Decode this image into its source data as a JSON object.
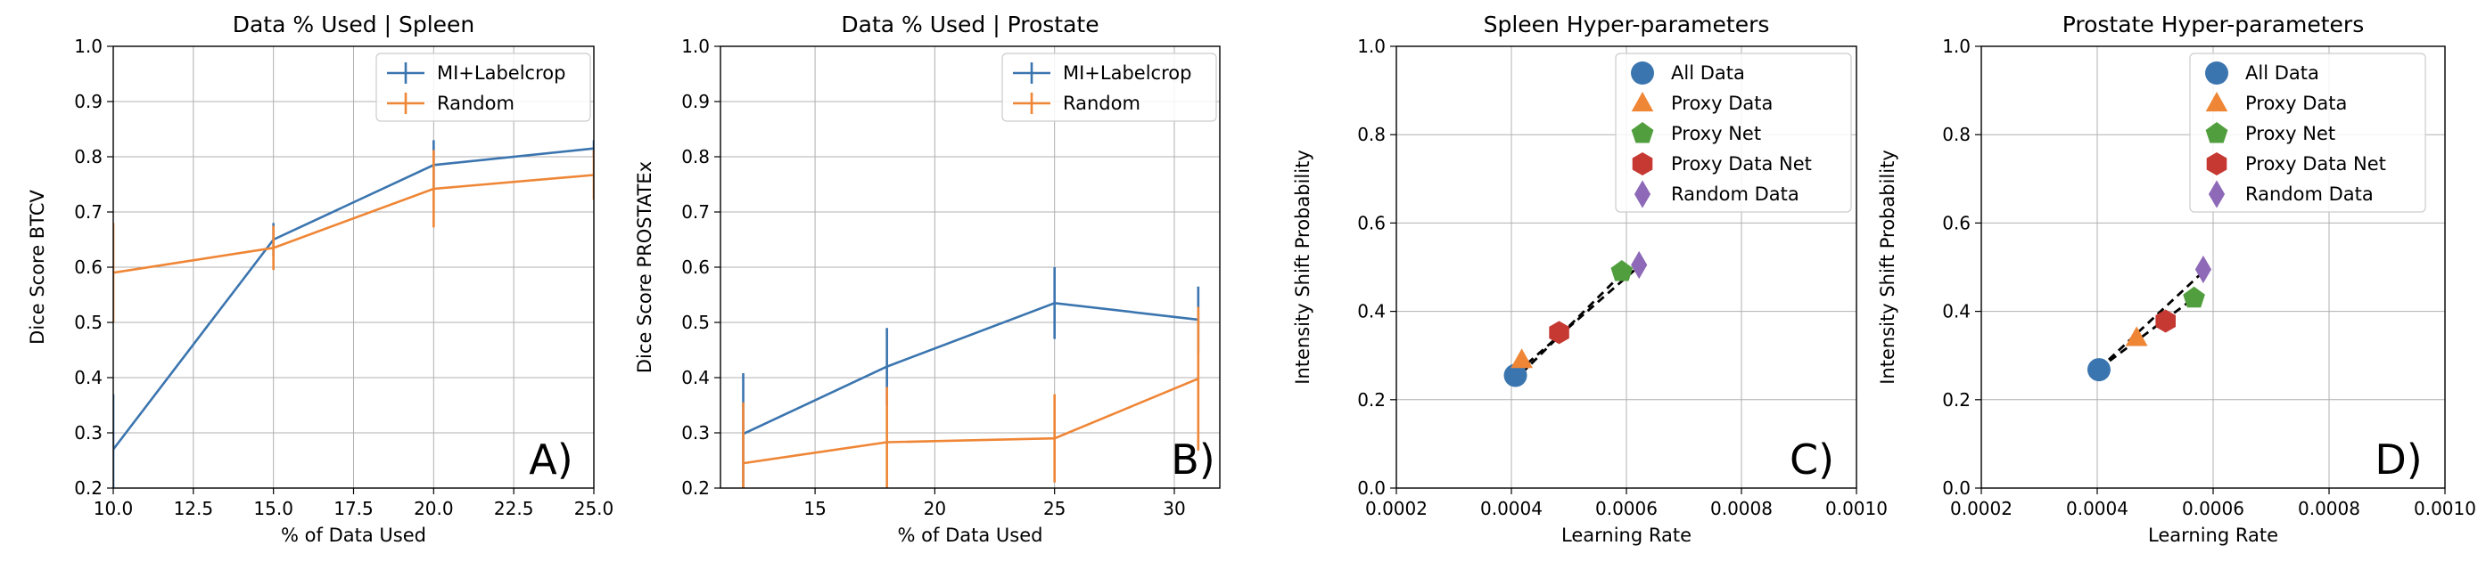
{
  "colors": {
    "blue": "#3b75af",
    "orange": "#ef8636",
    "green": "#519e3e",
    "red": "#c53932",
    "purple": "#8d69b8",
    "grid": "#b0b0b0"
  },
  "chart_data": [
    {
      "type": "line",
      "title": "Data % Used | Spleen",
      "xlabel": "% of Data Used",
      "ylabel": "Dice Score BTCV",
      "xlim": [
        10,
        25
      ],
      "ylim": [
        0.2,
        1.0
      ],
      "xticks": [
        "10.0",
        "12.5",
        "15.0",
        "17.5",
        "20.0",
        "22.5",
        "25.0"
      ],
      "yticks": [
        "0.2",
        "0.3",
        "0.4",
        "0.5",
        "0.6",
        "0.7",
        "0.8",
        "0.9",
        "1.0"
      ],
      "legend": "top-right",
      "panel_letter": "A)",
      "series": [
        {
          "name": "MI+Labelcrop",
          "color": "blue",
          "x": [
            10,
            15,
            20,
            25
          ],
          "y": [
            0.27,
            0.65,
            0.785,
            0.815
          ],
          "err": [
            0.1,
            0.03,
            0.045,
            0.015
          ]
        },
        {
          "name": "Random",
          "color": "orange",
          "x": [
            10,
            15,
            20,
            25
          ],
          "y": [
            0.59,
            0.635,
            0.742,
            0.767
          ],
          "err": [
            0.09,
            0.04,
            0.07,
            0.045
          ]
        }
      ]
    },
    {
      "type": "line",
      "title": "Data % Used | Prostate",
      "xlabel": "% of Data Used",
      "ylabel": "Dice Score PROSTATEx",
      "xlim": [
        11.05,
        31.9
      ],
      "ylim": [
        0.2,
        1.0
      ],
      "xticks": [
        "15",
        "20",
        "25",
        "30"
      ],
      "yticks": [
        "0.2",
        "0.3",
        "0.4",
        "0.5",
        "0.6",
        "0.7",
        "0.8",
        "0.9",
        "1.0"
      ],
      "legend": "top-right",
      "panel_letter": "B)",
      "series": [
        {
          "name": "MI+Labelcrop",
          "color": "blue",
          "x": [
            12,
            18,
            25,
            31
          ],
          "y": [
            0.298,
            0.42,
            0.535,
            0.505
          ],
          "err": [
            0.11,
            0.07,
            0.065,
            0.06
          ]
        },
        {
          "name": "Random",
          "color": "orange",
          "x": [
            12,
            18,
            25,
            31
          ],
          "y": [
            0.245,
            0.283,
            0.29,
            0.398
          ],
          "err": [
            0.11,
            0.1,
            0.08,
            0.13
          ]
        }
      ]
    },
    {
      "type": "scatter",
      "title": "Spleen Hyper-parameters",
      "xlabel": "Learning Rate",
      "ylabel": "Intensity Shift Probability",
      "xlim": [
        0.0002,
        0.001
      ],
      "ylim": [
        0.0,
        1.0
      ],
      "xticks": [
        "0.0002",
        "0.0004",
        "0.0006",
        "0.0008",
        "0.0010"
      ],
      "yticks": [
        "0.0",
        "0.2",
        "0.4",
        "0.6",
        "0.8",
        "1.0"
      ],
      "legend": "top-right",
      "panel_letter": "C)",
      "points": [
        {
          "name": "All Data",
          "marker": "circle",
          "color": "blue",
          "x": 0.000407,
          "y": 0.255
        },
        {
          "name": "Proxy Data",
          "marker": "triangle",
          "color": "orange",
          "x": 0.000418,
          "y": 0.29
        },
        {
          "name": "Proxy Net",
          "marker": "pentagon",
          "color": "green",
          "x": 0.000592,
          "y": 0.49
        },
        {
          "name": "Proxy Data Net",
          "marker": "hexagon",
          "color": "red",
          "x": 0.000483,
          "y": 0.352
        },
        {
          "name": "Random Data",
          "marker": "diamond",
          "color": "purple",
          "x": 0.000622,
          "y": 0.505
        }
      ],
      "dashed_lines": [
        [
          0.00041,
          0.262,
          0.00062,
          0.5
        ],
        [
          0.000418,
          0.26,
          0.000592,
          0.485
        ]
      ]
    },
    {
      "type": "scatter",
      "title": "Prostate Hyper-parameters",
      "xlabel": "Learning Rate",
      "ylabel": "Intensity Shift Probability",
      "xlim": [
        0.0002,
        0.001
      ],
      "ylim": [
        0.0,
        1.0
      ],
      "xticks": [
        "0.0002",
        "0.0004",
        "0.0006",
        "0.0008",
        "0.0010"
      ],
      "yticks": [
        "0.0",
        "0.2",
        "0.4",
        "0.6",
        "0.8",
        "1.0"
      ],
      "legend": "top-right",
      "panel_letter": "D)",
      "points": [
        {
          "name": "All Data",
          "marker": "circle",
          "color": "blue",
          "x": 0.000403,
          "y": 0.268
        },
        {
          "name": "Proxy Data",
          "marker": "triangle",
          "color": "orange",
          "x": 0.000468,
          "y": 0.34
        },
        {
          "name": "Proxy Net",
          "marker": "pentagon",
          "color": "green",
          "x": 0.000567,
          "y": 0.43
        },
        {
          "name": "Proxy Data Net",
          "marker": "hexagon",
          "color": "red",
          "x": 0.000518,
          "y": 0.378
        },
        {
          "name": "Random Data",
          "marker": "diamond",
          "color": "purple",
          "x": 0.000583,
          "y": 0.495
        }
      ],
      "dashed_lines": [
        [
          0.000403,
          0.27,
          0.000583,
          0.49
        ],
        [
          0.000403,
          0.27,
          0.000567,
          0.43
        ]
      ]
    }
  ]
}
